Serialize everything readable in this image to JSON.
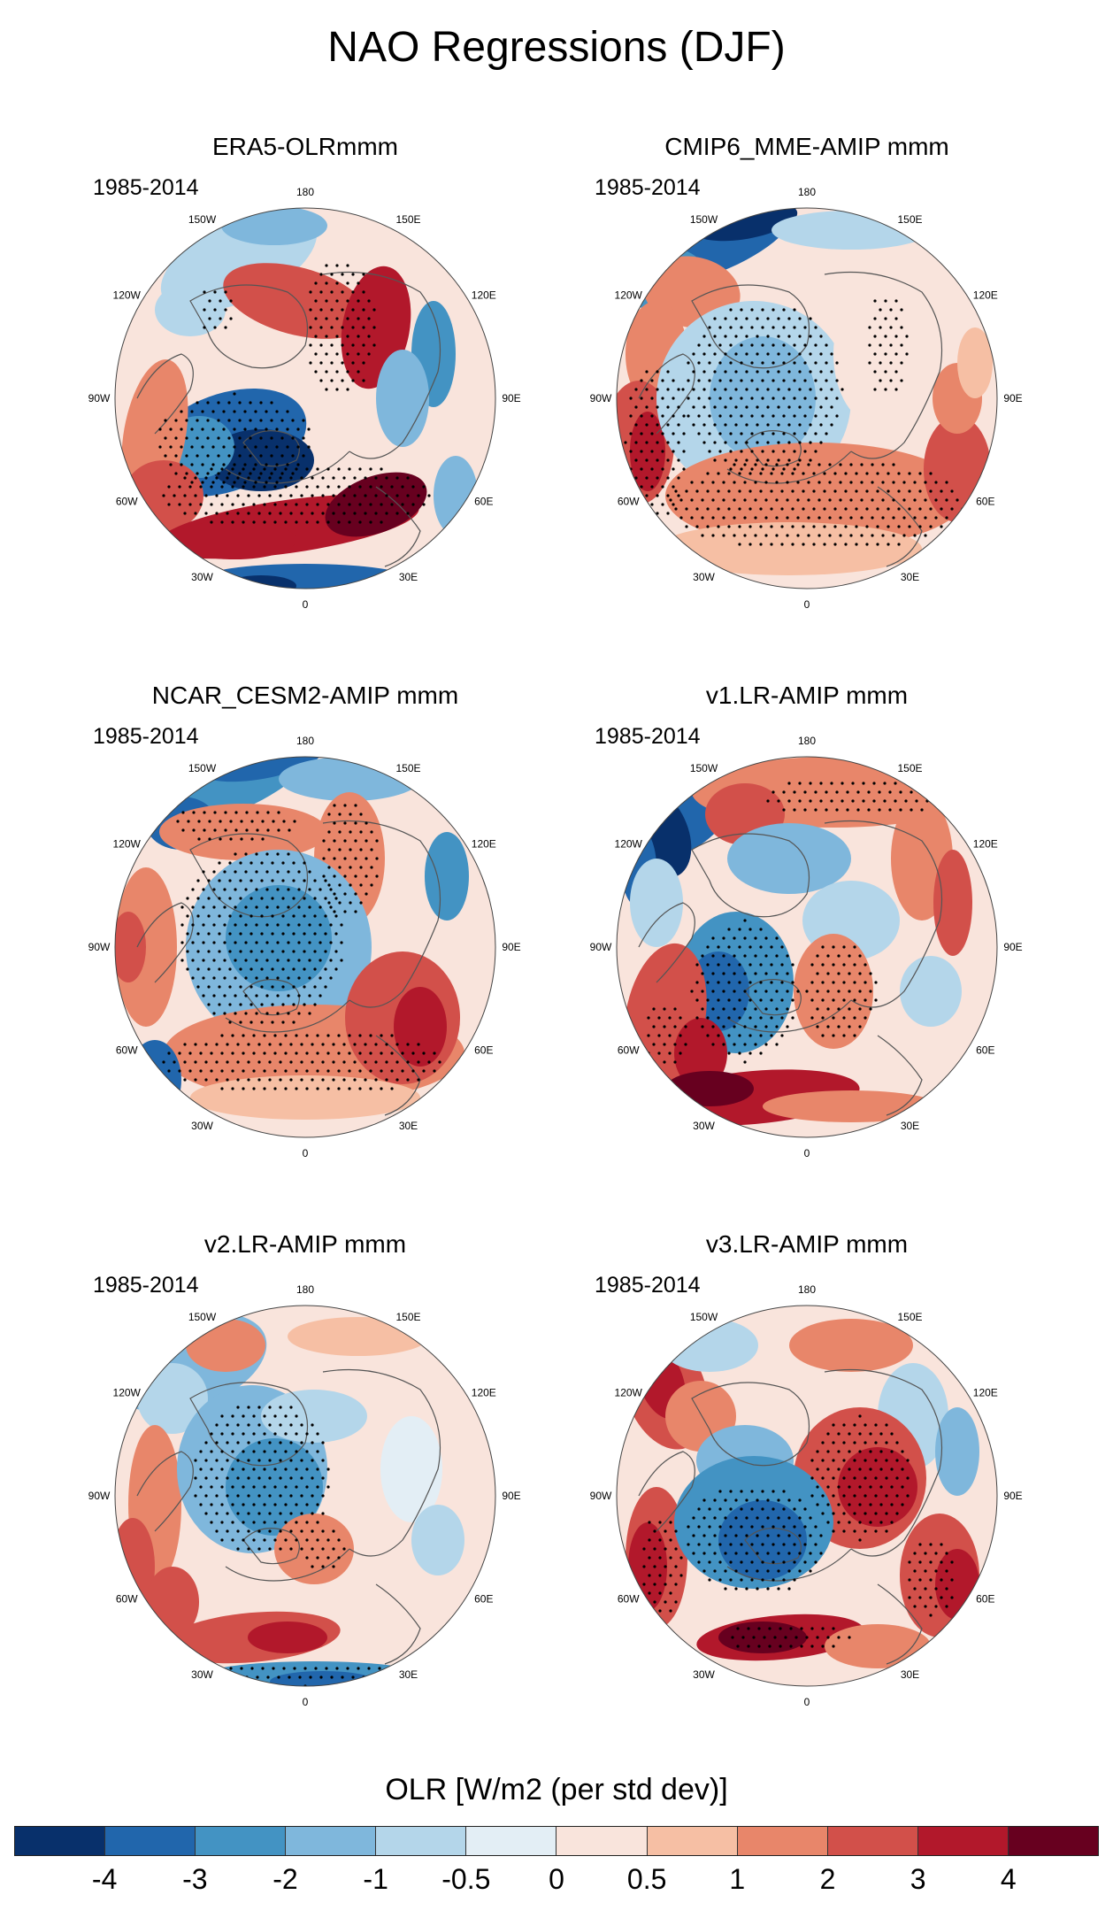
{
  "title": "NAO Regressions (DJF)",
  "period_label": "1985-2014",
  "lon_labels": {
    "0": "0",
    "30E": "30E",
    "60E": "60E",
    "90E": "90E",
    "120E": "120E",
    "150E": "150E",
    "180": "180",
    "150W": "150W",
    "120W": "120W",
    "90W": "90W",
    "60W": "60W",
    "30W": "30W"
  },
  "panels": [
    {
      "title": "ERA5-OLRmmm"
    },
    {
      "title": "CMIP6_MME-AMIP  mmm"
    },
    {
      "title": "NCAR_CESM2-AMIP  mmm"
    },
    {
      "title": "v1.LR-AMIP  mmm"
    },
    {
      "title": "v2.LR-AMIP  mmm"
    },
    {
      "title": "v3.LR-AMIP  mmm"
    }
  ],
  "colorbar": {
    "title": "OLR [W/m2 (per std dev)]",
    "colors": [
      "#08306b",
      "#2166ac",
      "#4393c3",
      "#7fb7dc",
      "#b4d6ea",
      "#e3eef5",
      "#f9e4dc",
      "#f6bfa4",
      "#e8866a",
      "#d2504a",
      "#b2182b",
      "#67001f"
    ],
    "ticks": [
      "-4",
      "-3",
      "-2",
      "-1",
      "-0.5",
      "0",
      "0.5",
      "1",
      "2",
      "3",
      "4"
    ]
  }
}
